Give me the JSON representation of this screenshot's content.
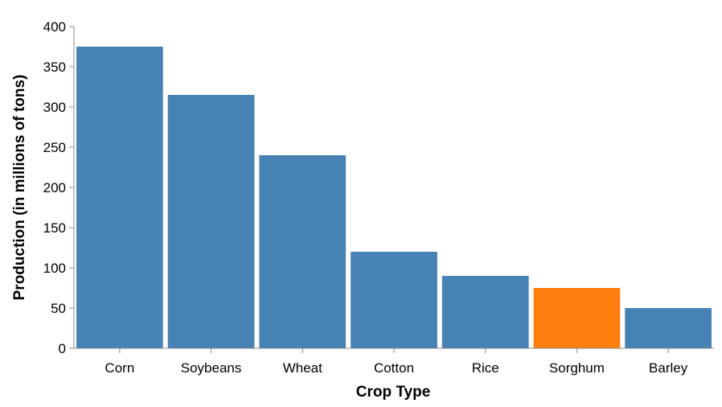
{
  "chart_data": {
    "type": "bar",
    "title": "",
    "xlabel": "Crop Type",
    "ylabel": "Production (in millions of tons)",
    "categories": [
      "Corn",
      "Soybeans",
      "Wheat",
      "Cotton",
      "Rice",
      "Sorghum",
      "Barley"
    ],
    "values": [
      375,
      315,
      240,
      120,
      90,
      75,
      50
    ],
    "highlight": "Sorghum",
    "ylim": [
      0,
      400
    ],
    "yticks": [
      0,
      50,
      100,
      150,
      200,
      250,
      300,
      350,
      400
    ],
    "grid": false,
    "legend": "none",
    "colors": {
      "bar": "#4682b4",
      "highlight": "#ff7f0e",
      "axis": "#888888"
    }
  }
}
